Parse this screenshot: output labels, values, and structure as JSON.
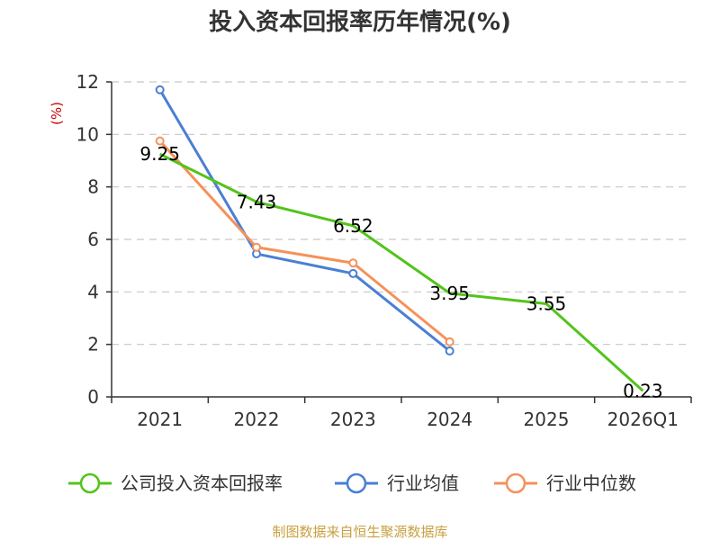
{
  "chart_data": {
    "type": "line",
    "title": "投入资本回报率历年情况(%)",
    "ylabel": "(%)",
    "xlabel": "",
    "categories": [
      "2021",
      "2022",
      "2023",
      "2024",
      "2025",
      "2026Q1"
    ],
    "ylim": [
      0,
      12
    ],
    "yticks": [
      0,
      2,
      4,
      6,
      8,
      10,
      12
    ],
    "grid": true,
    "legend_position": "bottom",
    "series": [
      {
        "name": "公司投入资本回报率",
        "values": [
          9.25,
          7.43,
          6.52,
          3.95,
          3.55,
          0.23
        ],
        "labels": [
          "9.25",
          "7.43",
          "6.52",
          "3.95",
          "3.55",
          "0.23"
        ],
        "color": "#52c41a",
        "markers": false
      },
      {
        "name": "行业均值",
        "values": [
          11.7,
          5.45,
          4.7,
          1.75,
          null,
          null
        ],
        "color": "#4a7fd4",
        "markers": true
      },
      {
        "name": "行业中位数",
        "values": [
          9.75,
          5.7,
          5.1,
          2.1,
          null,
          null
        ],
        "color": "#f5915a",
        "markers": true
      }
    ]
  },
  "source": "制图数据来自恒生聚源数据库"
}
